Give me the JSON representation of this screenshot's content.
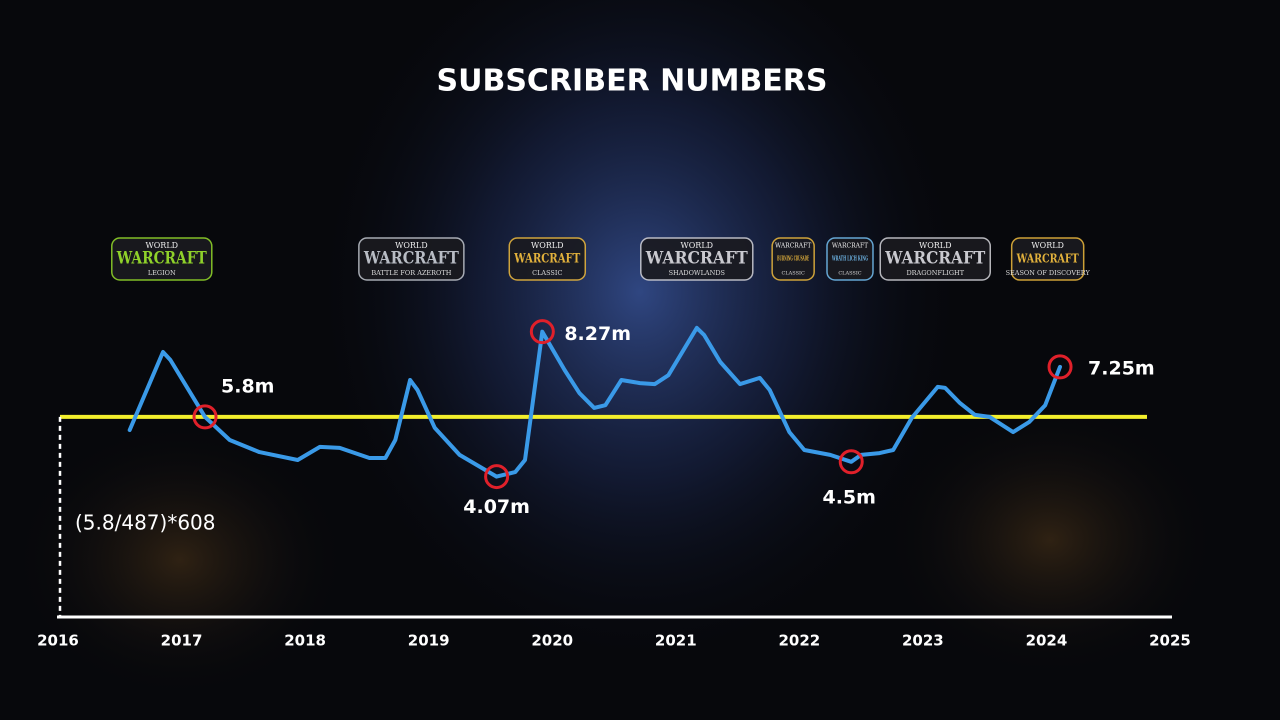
{
  "chart_data": {
    "type": "line",
    "title": "SUBSCRIBER NUMBERS",
    "xlim": [
      2016,
      2025
    ],
    "xticks": [
      2016,
      2017,
      2018,
      2019,
      2020,
      2021,
      2022,
      2023,
      2024,
      2025
    ],
    "ylim": [
      0,
      10
    ],
    "series": [
      {
        "color": "#3a9ae8",
        "x": [
          2016.58,
          2016.85,
          2016.91,
          2017.19,
          2017.39,
          2017.63,
          2017.94,
          2018.12,
          2018.28,
          2018.52,
          2018.65,
          2018.73,
          2018.85,
          2018.91,
          2019.05,
          2019.25,
          2019.55,
          2019.7,
          2019.78,
          2019.92,
          2020.1,
          2020.22,
          2020.34,
          2020.43,
          2020.56,
          2020.71,
          2020.83,
          2020.94,
          2021.17,
          2021.23,
          2021.36,
          2021.52,
          2021.68,
          2021.76,
          2021.92,
          2022.04,
          2022.25,
          2022.42,
          2022.5,
          2022.65,
          2022.76,
          2022.91,
          2023.12,
          2023.18,
          2023.3,
          2023.42,
          2023.54,
          2023.73,
          2023.86,
          2023.99,
          2024.11
        ],
        "values": [
          5.42,
          7.68,
          7.45,
          5.8,
          5.13,
          4.78,
          4.55,
          4.93,
          4.9,
          4.61,
          4.61,
          5.13,
          6.87,
          6.58,
          5.48,
          4.7,
          4.07,
          4.2,
          4.55,
          8.27,
          7.16,
          6.49,
          6.06,
          6.14,
          6.87,
          6.78,
          6.75,
          7.01,
          8.38,
          8.17,
          7.39,
          6.75,
          6.93,
          6.58,
          5.36,
          4.84,
          4.7,
          4.5,
          4.7,
          4.75,
          4.84,
          5.77,
          6.67,
          6.64,
          6.2,
          5.86,
          5.8,
          5.36,
          5.65,
          6.14,
          7.25
        ]
      }
    ],
    "annotations": [
      {
        "x": 2017.19,
        "value": 5.8,
        "label": "5.8m"
      },
      {
        "x": 2019.55,
        "value": 4.07,
        "label": "4.07m"
      },
      {
        "x": 2019.92,
        "value": 8.27,
        "label": "8.27m"
      },
      {
        "x": 2022.42,
        "value": 4.5,
        "label": "4.5m"
      },
      {
        "x": 2024.11,
        "value": 7.25,
        "label": "7.25m"
      }
    ],
    "marker_color": "#e0202a",
    "reference_line": {
      "value": 5.8,
      "color": "#f3ef2c"
    },
    "note": "(5.8/487)*608",
    "logos": [
      {
        "x": 2016.84,
        "top": "WORLD",
        "name": "WARCRAFT",
        "subtitle": "LEGION",
        "color": "#8fd12a"
      },
      {
        "x": 2018.86,
        "top": "WORLD",
        "name": "WARCRAFT",
        "subtitle": "BATTLE FOR AZEROTH",
        "color": "#b8bcc4"
      },
      {
        "x": 2019.96,
        "top": "WORLD",
        "name": "WARCRAFT",
        "subtitle": "CLASSIC",
        "color": "#e3b23c"
      },
      {
        "x": 2021.17,
        "top": "WORLD",
        "name": "WARCRAFT",
        "subtitle": "SHADOWLANDS",
        "color": "#c9c9cf"
      },
      {
        "x": 2021.95,
        "top": "WARCRAFT",
        "name": "BURNING CRUSADE",
        "subtitle": "CLASSIC",
        "color": "#e3b23c"
      },
      {
        "x": 2022.41,
        "top": "WARCRAFT",
        "name": "WRATH LICH KING",
        "subtitle": "CLASSIC",
        "color": "#6fb7e8"
      },
      {
        "x": 2023.1,
        "top": "WORLD",
        "name": "WARCRAFT",
        "subtitle": "DRAGONFLIGHT",
        "color": "#c9c9cf"
      },
      {
        "x": 2024.01,
        "top": "WORLD",
        "name": "WARCRAFT",
        "subtitle": "SEASON OF DISCOVERY",
        "color": "#e3b23c"
      }
    ]
  }
}
